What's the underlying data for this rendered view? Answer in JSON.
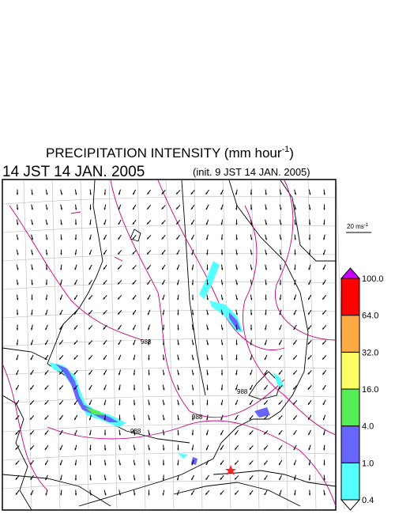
{
  "header": {
    "title": "PRECIPITATION INTENSITY (mm hour",
    "title_sup": "-1",
    "title_end": ")",
    "valid_time": "14 JST 14 JAN. 2005",
    "init_time": "(init. 9 JST 14 JAN. 2005)"
  },
  "reference_vector": {
    "label": "20 ms",
    "label_sup": "-1"
  },
  "contour_labels": [
    "988",
    "988",
    "988",
    "988"
  ],
  "colorbar": {
    "labels": [
      "100.0",
      "64.0",
      "32.0",
      "16.0",
      "4.0",
      "1.0",
      "0.4"
    ],
    "colors": [
      "#ffffff",
      "#55ffff",
      "#6666ff",
      "#55ee55",
      "#ffff66",
      "#ffaa44",
      "#ff0000",
      "#cc00ff"
    ]
  }
}
